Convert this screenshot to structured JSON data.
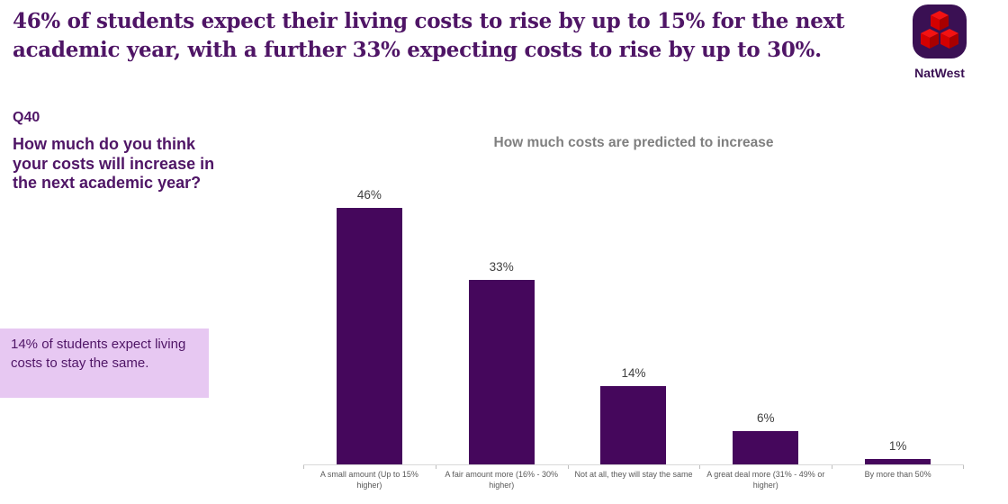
{
  "headline": {
    "line1": "46% of students expect their living costs to rise by up to 15% for the next",
    "line2": "academic year, with a further 33% expecting costs to rise by up to 30%."
  },
  "logo": {
    "brand": "NatWest"
  },
  "question": {
    "id": "Q40",
    "text": "How much do you think your costs will increase in the next academic year?"
  },
  "callout": {
    "text": "14% of students expect living costs to stay the same."
  },
  "chart_data": {
    "type": "bar",
    "title": "How much costs are predicted to increase",
    "categories": [
      "A small amount (Up to 15% higher)",
      "A fair amount more (16% - 30% higher)",
      "Not at all, they will stay the same",
      "A great deal more (31% - 49% or higher)",
      "By more than 50%"
    ],
    "values": [
      46,
      33,
      14,
      6,
      1
    ],
    "value_labels": [
      "46%",
      "33%",
      "14%",
      "6%",
      "1%"
    ],
    "ylim": [
      0,
      50
    ],
    "grid": false,
    "legend": false,
    "bar_color": "#45075c",
    "axis_color": "#d9d9d9"
  },
  "colors": {
    "brand_purple": "#3a1053",
    "heading_purple": "#4f1566",
    "bar_purple": "#45075c",
    "callout_bg": "#e7c8f2",
    "chart_title_gray": "#7f7f7f",
    "logo_red": "#e60000",
    "logo_red_dark": "#a80000"
  }
}
